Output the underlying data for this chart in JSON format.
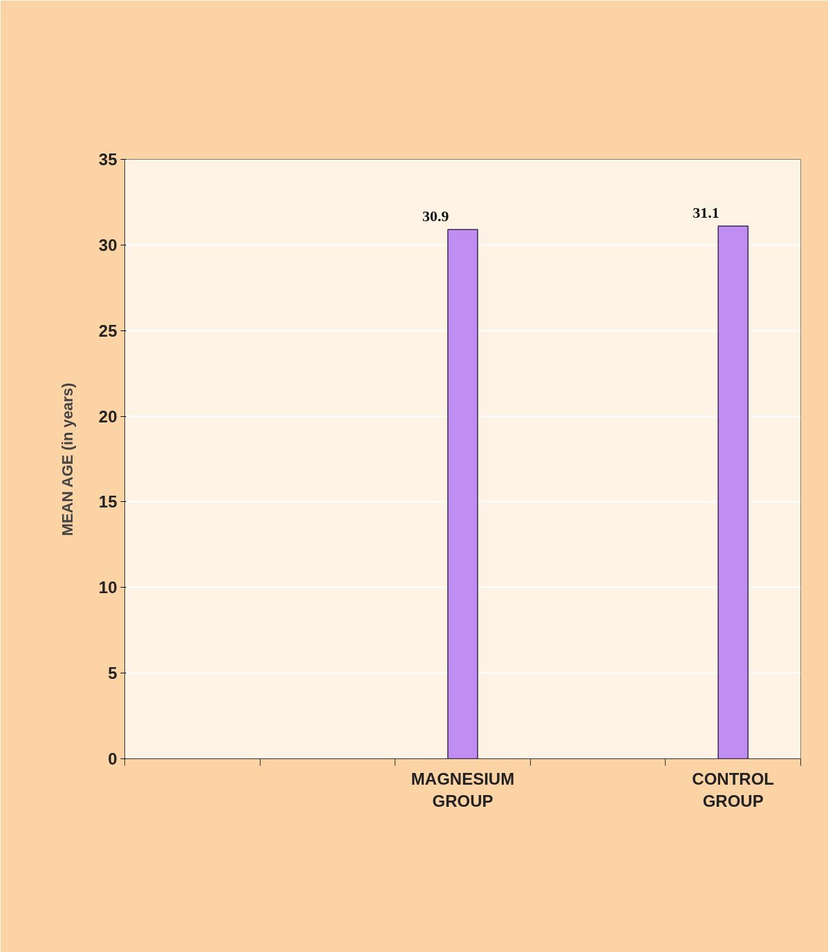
{
  "chart_data": {
    "type": "bar",
    "ylabel": "MEAN AGE (in years)",
    "categories": [
      null,
      null,
      "MAGNESIUM GROUP",
      null,
      "CONTROL GROUP"
    ],
    "values": [
      null,
      null,
      30.9,
      null,
      31.1
    ],
    "color": "#c08ef2",
    "ylim": [
      0,
      35
    ],
    "yticks": [
      0,
      5,
      10,
      15,
      20,
      25,
      30,
      35
    ],
    "grid": "y",
    "data_labels": true
  }
}
